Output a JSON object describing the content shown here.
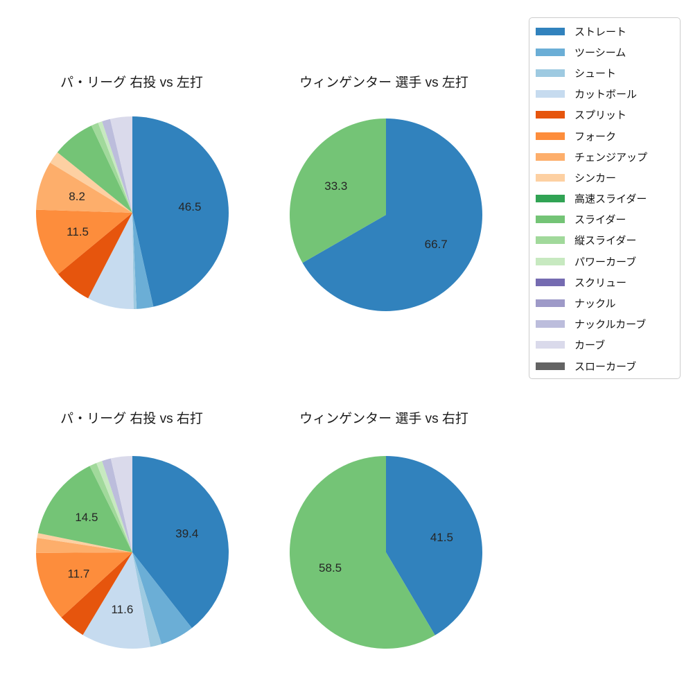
{
  "colors": {
    "background": "#ffffff",
    "label_text": "#262626",
    "title_text": "#1a1a1a",
    "legend_border": "#cccccc"
  },
  "legend": {
    "items": [
      {
        "label": "ストレート",
        "color": "#3182bd"
      },
      {
        "label": "ツーシーム",
        "color": "#6baed6"
      },
      {
        "label": "シュート",
        "color": "#9ecae1"
      },
      {
        "label": "カットボール",
        "color": "#c6dbef"
      },
      {
        "label": "スプリット",
        "color": "#e6550d"
      },
      {
        "label": "フォーク",
        "color": "#fd8d3c"
      },
      {
        "label": "チェンジアップ",
        "color": "#fdae6b"
      },
      {
        "label": "シンカー",
        "color": "#fdd0a2"
      },
      {
        "label": "高速スライダー",
        "color": "#31a354"
      },
      {
        "label": "スライダー",
        "color": "#74c476"
      },
      {
        "label": "縦スライダー",
        "color": "#a1d99b"
      },
      {
        "label": "パワーカーブ",
        "color": "#c7e9c0"
      },
      {
        "label": "スクリュー",
        "color": "#756bb1"
      },
      {
        "label": "ナックル",
        "color": "#9e9ac8"
      },
      {
        "label": "ナックルカーブ",
        "color": "#bcbddc"
      },
      {
        "label": "カーブ",
        "color": "#dadaeb"
      },
      {
        "label": "スローカーブ",
        "color": "#636363"
      }
    ]
  },
  "chart_data": [
    {
      "type": "pie",
      "title": "パ・リーグ 右投 vs 左打",
      "start_angle": "top",
      "direction": "clockwise",
      "label_threshold_pct": 8,
      "slices": [
        {
          "name": "ストレート",
          "value": 46.5,
          "pct_label": "46.5"
        },
        {
          "name": "ツーシーム",
          "value": 2.8
        },
        {
          "name": "シュート",
          "value": 0.5
        },
        {
          "name": "カットボール",
          "value": 7.8
        },
        {
          "name": "スプリット",
          "value": 6.4
        },
        {
          "name": "フォーク",
          "value": 11.5,
          "pct_label": "11.5"
        },
        {
          "name": "チェンジアップ",
          "value": 8.2,
          "pct_label": "8.2"
        },
        {
          "name": "シンカー",
          "value": 2.1
        },
        {
          "name": "スライダー",
          "value": 7.2
        },
        {
          "name": "縦スライダー",
          "value": 1.2
        },
        {
          "name": "パワーカーブ",
          "value": 0.7
        },
        {
          "name": "ナックルカーブ",
          "value": 1.4
        },
        {
          "name": "カーブ",
          "value": 3.7
        }
      ]
    },
    {
      "type": "pie",
      "title": "ウィンゲンター 選手 vs 左打",
      "start_angle": "top",
      "direction": "clockwise",
      "slices": [
        {
          "name": "ストレート",
          "value": 66.7,
          "pct_label": "66.7"
        },
        {
          "name": "スライダー",
          "value": 33.3,
          "pct_label": "33.3"
        }
      ]
    },
    {
      "type": "pie",
      "title": "パ・リーグ 右投 vs 右打",
      "start_angle": "top",
      "direction": "clockwise",
      "label_threshold_pct": 8,
      "slices": [
        {
          "name": "ストレート",
          "value": 39.4,
          "pct_label": "39.4"
        },
        {
          "name": "ツーシーム",
          "value": 5.7
        },
        {
          "name": "シュート",
          "value": 1.9
        },
        {
          "name": "カットボール",
          "value": 11.6,
          "pct_label": "11.6"
        },
        {
          "name": "スプリット",
          "value": 4.6
        },
        {
          "name": "フォーク",
          "value": 11.7,
          "pct_label": "11.7"
        },
        {
          "name": "チェンジアップ",
          "value": 2.5
        },
        {
          "name": "シンカー",
          "value": 0.8
        },
        {
          "name": "スライダー",
          "value": 14.5,
          "pct_label": "14.5"
        },
        {
          "name": "縦スライダー",
          "value": 1.2
        },
        {
          "name": "パワーカーブ",
          "value": 1.0
        },
        {
          "name": "ナックルカーブ",
          "value": 1.5
        },
        {
          "name": "カーブ",
          "value": 3.6
        }
      ]
    },
    {
      "type": "pie",
      "title": "ウィンゲンター 選手 vs 右打",
      "start_angle": "top",
      "direction": "clockwise",
      "slices": [
        {
          "name": "ストレート",
          "value": 41.5,
          "pct_label": "41.5"
        },
        {
          "name": "スライダー",
          "value": 58.5,
          "pct_label": "58.5"
        }
      ]
    }
  ]
}
